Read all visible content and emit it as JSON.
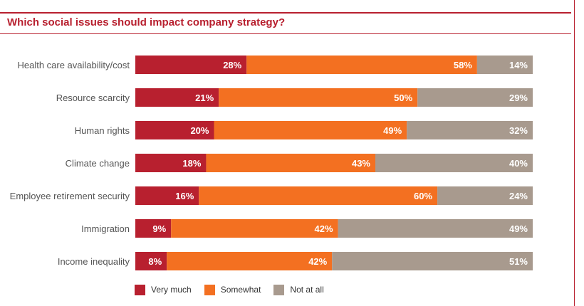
{
  "chart_data": {
    "type": "bar",
    "orientation": "horizontal",
    "stacked": true,
    "title": "Which social issues should impact company strategy?",
    "categories": [
      "Health care availability/cost",
      "Resource scarcity",
      "Human rights",
      "Climate change",
      "Employee retirement security",
      "Immigration",
      "Income inequality"
    ],
    "series": [
      {
        "name": "Very much",
        "color": "#b8202f",
        "values": [
          28,
          21,
          20,
          18,
          16,
          9,
          8
        ]
      },
      {
        "name": "Somewhat",
        "color": "#f37021",
        "values": [
          58,
          50,
          49,
          43,
          60,
          42,
          42
        ]
      },
      {
        "name": "Not at all",
        "color": "#a89a8e",
        "values": [
          14,
          29,
          32,
          40,
          24,
          49,
          51
        ]
      }
    ],
    "value_suffix": "%",
    "legend_position": "bottom-left",
    "grid": false
  }
}
